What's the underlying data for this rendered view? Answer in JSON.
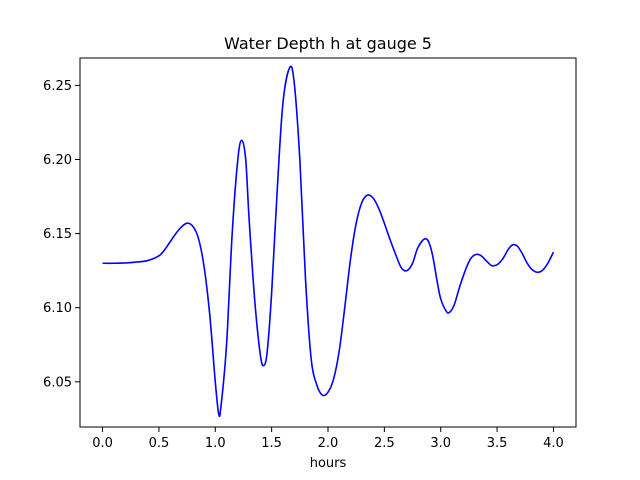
{
  "chart_data": {
    "type": "line",
    "title": "Water Depth h at gauge 5",
    "xlabel": "hours",
    "ylabel": "",
    "xlim": [
      -0.2,
      4.2
    ],
    "ylim": [
      6.0195,
      6.2685
    ],
    "xticks": [
      0.0,
      0.5,
      1.0,
      1.5,
      2.0,
      2.5,
      3.0,
      3.5,
      4.0
    ],
    "xtick_labels": [
      "0.0",
      "0.5",
      "1.0",
      "1.5",
      "2.0",
      "2.5",
      "3.0",
      "3.5",
      "4.0"
    ],
    "yticks": [
      6.05,
      6.1,
      6.15,
      6.2,
      6.25
    ],
    "ytick_labels": [
      "6.05",
      "6.10",
      "6.15",
      "6.20",
      "6.25"
    ],
    "grid": false,
    "series": [
      {
        "color": "#0000ff",
        "x": [
          0.0,
          0.1,
          0.2,
          0.3,
          0.4,
          0.5,
          0.55,
          0.6,
          0.65,
          0.7,
          0.75,
          0.8,
          0.85,
          0.9,
          0.95,
          1.0,
          1.03,
          1.05,
          1.1,
          1.15,
          1.2,
          1.235,
          1.27,
          1.3,
          1.35,
          1.4,
          1.43,
          1.46,
          1.5,
          1.55,
          1.6,
          1.66,
          1.7,
          1.75,
          1.8,
          1.85,
          1.9,
          1.95,
          2.0,
          2.05,
          2.1,
          2.15,
          2.2,
          2.25,
          2.3,
          2.35,
          2.4,
          2.45,
          2.5,
          2.55,
          2.6,
          2.65,
          2.7,
          2.75,
          2.8,
          2.87,
          2.92,
          2.97,
          3.0,
          3.05,
          3.08,
          3.12,
          3.18,
          3.25,
          3.3,
          3.35,
          3.4,
          3.45,
          3.5,
          3.55,
          3.6,
          3.64,
          3.68,
          3.72,
          3.76,
          3.8,
          3.85,
          3.9,
          3.95,
          4.0
        ],
        "y": [
          6.13,
          6.13,
          6.1302,
          6.1308,
          6.1318,
          6.135,
          6.139,
          6.1445,
          6.15,
          6.1545,
          6.157,
          6.155,
          6.147,
          6.128,
          6.096,
          6.05,
          6.0285,
          6.033,
          6.075,
          6.15,
          6.2,
          6.213,
          6.2,
          6.16,
          6.105,
          6.068,
          6.061,
          6.07,
          6.11,
          6.18,
          6.238,
          6.262,
          6.252,
          6.2,
          6.12,
          6.066,
          6.048,
          6.041,
          6.043,
          6.052,
          6.071,
          6.101,
          6.133,
          6.157,
          6.171,
          6.176,
          6.174,
          6.167,
          6.157,
          6.146,
          6.136,
          6.127,
          6.125,
          6.13,
          6.141,
          6.1465,
          6.138,
          6.117,
          6.106,
          6.0975,
          6.097,
          6.102,
          6.117,
          6.131,
          6.1355,
          6.1355,
          6.132,
          6.1285,
          6.129,
          6.133,
          6.1395,
          6.1425,
          6.1415,
          6.137,
          6.131,
          6.1265,
          6.124,
          6.125,
          6.13,
          6.1375
        ]
      }
    ]
  }
}
